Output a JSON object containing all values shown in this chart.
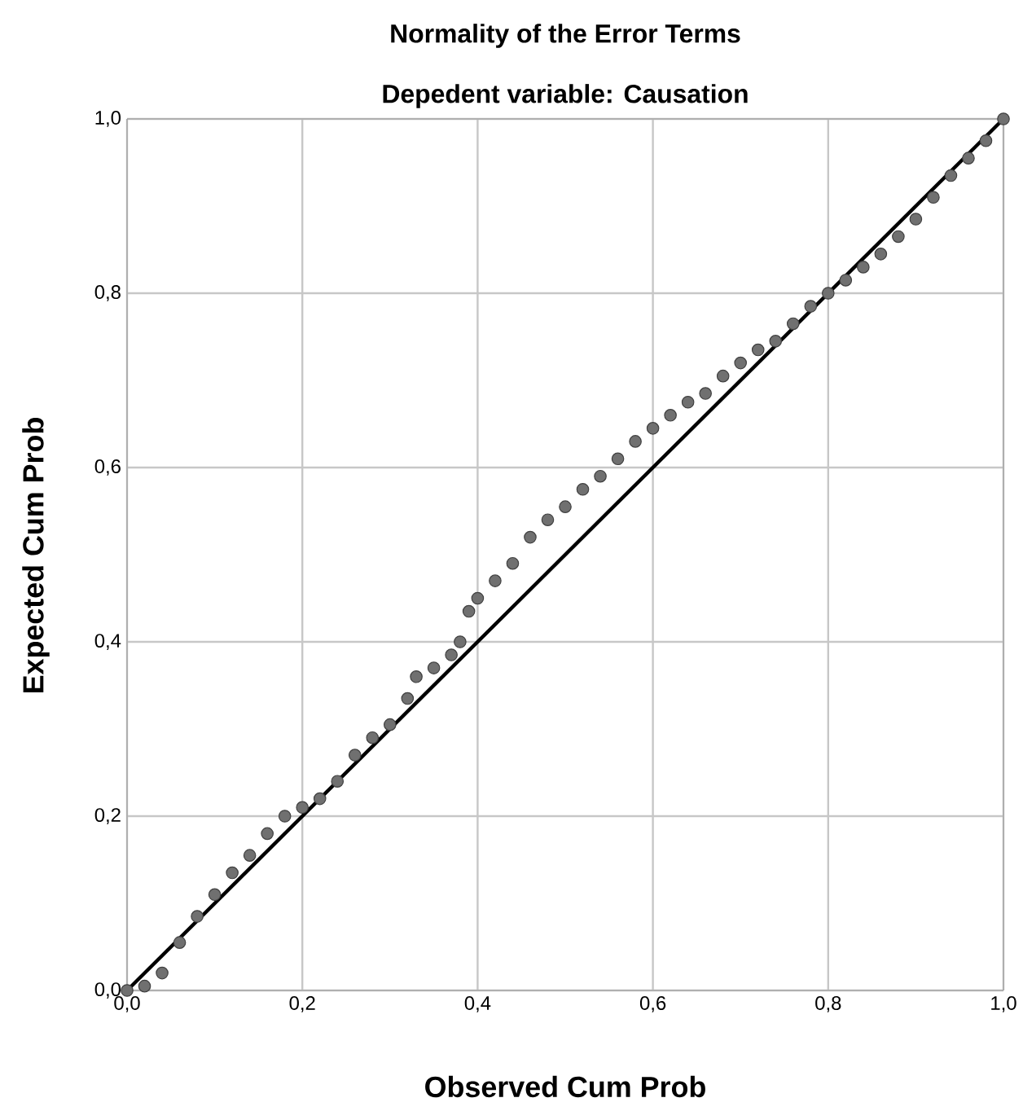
{
  "chart_data": {
    "type": "scatter",
    "title": "Normality of the Error Terms",
    "subtitle": "Depedent variable: Causation",
    "xlabel": "Observed Cum Prob",
    "ylabel": "Expected Cum Prob",
    "xlim": [
      0,
      1
    ],
    "ylim": [
      0,
      1
    ],
    "xticks": [
      {
        "value": 0,
        "label": "0,0"
      },
      {
        "value": 0.2,
        "label": "0,2"
      },
      {
        "value": 0.4,
        "label": "0,4"
      },
      {
        "value": 0.6,
        "label": "0,6"
      },
      {
        "value": 0.8,
        "label": "0,8"
      },
      {
        "value": 1,
        "label": "1,0"
      }
    ],
    "yticks": [
      {
        "value": 0,
        "label": "0,0"
      },
      {
        "value": 0.2,
        "label": "0,2"
      },
      {
        "value": 0.4,
        "label": "0,4"
      },
      {
        "value": 0.6,
        "label": "0,6"
      },
      {
        "value": 0.8,
        "label": "0,8"
      },
      {
        "value": 1,
        "label": "1,0"
      }
    ],
    "grid": true,
    "marker": "circle",
    "series": [
      {
        "color": "#707070",
        "x": [
          0.0,
          0.02,
          0.04,
          0.06,
          0.08,
          0.1,
          0.12,
          0.14,
          0.16,
          0.18,
          0.2,
          0.22,
          0.24,
          0.26,
          0.28,
          0.3,
          0.32,
          0.33,
          0.35,
          0.37,
          0.38,
          0.39,
          0.4,
          0.42,
          0.44,
          0.46,
          0.48,
          0.5,
          0.52,
          0.54,
          0.56,
          0.58,
          0.6,
          0.62,
          0.64,
          0.66,
          0.68,
          0.7,
          0.72,
          0.74,
          0.76,
          0.78,
          0.8,
          0.82,
          0.84,
          0.86,
          0.88,
          0.9,
          0.92,
          0.94,
          0.96,
          0.98,
          1.0
        ],
        "values": [
          0.0,
          0.005,
          0.02,
          0.055,
          0.085,
          0.11,
          0.135,
          0.155,
          0.18,
          0.2,
          0.21,
          0.22,
          0.24,
          0.27,
          0.29,
          0.305,
          0.335,
          0.36,
          0.37,
          0.385,
          0.4,
          0.435,
          0.45,
          0.47,
          0.49,
          0.52,
          0.54,
          0.555,
          0.575,
          0.59,
          0.61,
          0.63,
          0.645,
          0.66,
          0.675,
          0.685,
          0.705,
          0.72,
          0.735,
          0.745,
          0.765,
          0.785,
          0.8,
          0.815,
          0.83,
          0.845,
          0.865,
          0.885,
          0.91,
          0.935,
          0.955,
          0.975,
          1.0
        ]
      },
      {
        "type": "line",
        "color": "#000000",
        "x": [
          0,
          1
        ],
        "values": [
          0,
          1
        ]
      }
    ]
  }
}
